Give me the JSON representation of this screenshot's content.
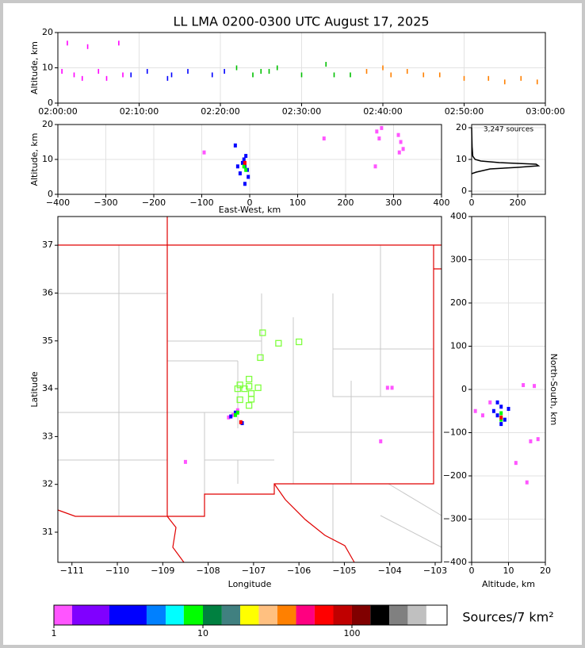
{
  "chart_data": [
    {
      "type": "scatter",
      "title": "LL LMA 0200-0300 UTC August 17, 2025",
      "ylabel": "Altitude, km",
      "xlim": [
        "02:00:00",
        "03:00:00"
      ],
      "xticks": [
        "02:00:00",
        "02:10:00",
        "02:20:00",
        "02:30:00",
        "02:40:00",
        "02:50:00",
        "03:00:00"
      ],
      "ylim": [
        0,
        20
      ],
      "yticks": [
        0,
        10,
        20
      ],
      "grid": true,
      "marker": "dash",
      "series": [
        {
          "color": "#ff00ff",
          "x": [
            "02:00:30",
            "02:01:10",
            "02:02:00",
            "02:03:00",
            "02:03:40",
            "02:05:00",
            "02:06:00",
            "02:07:30",
            "02:08:00"
          ],
          "values": [
            9,
            17,
            8,
            7,
            16,
            9,
            7,
            17,
            8
          ]
        },
        {
          "color": "#0000ff",
          "x": [
            "02:09:00",
            "02:11:00",
            "02:13:30",
            "02:14:00",
            "02:16:00",
            "02:19:00",
            "02:20:30"
          ],
          "values": [
            8,
            9,
            7,
            8,
            9,
            8,
            9
          ]
        },
        {
          "color": "#00c000",
          "x": [
            "02:22:00",
            "02:24:00",
            "02:25:00",
            "02:26:00",
            "02:27:00",
            "02:30:00",
            "02:33:00",
            "02:34:00",
            "02:36:00"
          ],
          "values": [
            10,
            8,
            9,
            9,
            10,
            8,
            11,
            8,
            8
          ]
        },
        {
          "color": "#ff8000",
          "x": [
            "02:38:00",
            "02:40:00",
            "02:41:00",
            "02:43:00",
            "02:45:00",
            "02:47:00",
            "02:50:00",
            "02:53:00",
            "02:55:00",
            "02:57:00",
            "02:59:00"
          ],
          "values": [
            9,
            10,
            8,
            9,
            8,
            8,
            7,
            7,
            6,
            7,
            6
          ]
        }
      ]
    },
    {
      "type": "scatter",
      "xlabel": "East-West, km",
      "ylabel": "Altitude, km",
      "xlim": [
        -400,
        400
      ],
      "xticks": [
        {
          "value": -400,
          "label": "−400"
        },
        {
          "value": -300,
          "label": "−300"
        },
        {
          "value": -200,
          "label": "−200"
        },
        {
          "value": -100,
          "label": "−100"
        },
        0,
        100,
        200,
        300,
        400
      ],
      "ylim": [
        0,
        20
      ],
      "yticks": [
        0,
        10,
        20
      ],
      "grid": true,
      "marker": "dot",
      "series": [
        {
          "color": "#0000ff",
          "x": [
            -10,
            -15,
            -5,
            -20,
            -12,
            -8,
            -25,
            -3,
            -10,
            -30
          ],
          "values": [
            8,
            9,
            7,
            6,
            10,
            11,
            8,
            5,
            3,
            14
          ]
        },
        {
          "color": "#ff55ff",
          "x": [
            265,
            270,
            275,
            262,
            310,
            315,
            320,
            312,
            -95,
            155
          ],
          "values": [
            18,
            16,
            19,
            8,
            17,
            15,
            13,
            12,
            12,
            16
          ]
        },
        {
          "color": "#00ff00",
          "x": [
            -12,
            -8
          ],
          "values": [
            8,
            7
          ]
        },
        {
          "color": "#ff0000",
          "x": [
            -10
          ],
          "values": [
            9
          ]
        }
      ]
    },
    {
      "type": "line",
      "annotation": "3,247 sources",
      "xlim": [
        0,
        320
      ],
      "xticks": [
        0,
        200
      ],
      "ylim": [
        -1,
        21
      ],
      "yticks": [
        0,
        10,
        20
      ],
      "grid": true,
      "color": "#000000",
      "x": [
        0,
        20,
        80,
        200,
        290,
        280,
        120,
        40,
        15,
        5,
        2,
        1,
        0
      ],
      "values": [
        5.5,
        6,
        7,
        7.5,
        8,
        8.5,
        9,
        9.5,
        10,
        11,
        14,
        17,
        20
      ]
    },
    {
      "type": "scatter",
      "xlabel": "Longitude",
      "ylabel": "Latitude",
      "xlim": [
        -111.31,
        -102.86
      ],
      "xticks": [
        {
          "value": -111,
          "label": "−111"
        },
        {
          "value": -110,
          "label": "−110"
        },
        {
          "value": -109,
          "label": "−109"
        },
        {
          "value": -108,
          "label": "−108"
        },
        {
          "value": -107,
          "label": "−107"
        },
        {
          "value": -106,
          "label": "−106"
        },
        {
          "value": -105,
          "label": "−105"
        },
        {
          "value": -104,
          "label": "−104"
        },
        {
          "value": -103,
          "label": "−103"
        }
      ],
      "ylim": [
        30.37,
        37.6
      ],
      "yticks": [
        31,
        32,
        33,
        34,
        35,
        36,
        37
      ],
      "grid": false,
      "marker": "dot",
      "series": [
        {
          "color": "#80ff40",
          "marker": "square",
          "x": [
            -106.8,
            -106.45,
            -106.0,
            -106.85,
            -107.1,
            -107.3,
            -107.1,
            -106.9,
            -107.2,
            -107.35,
            -107.05,
            -107.05,
            -107.1,
            -107.3
          ],
          "values": [
            35.17,
            34.95,
            34.98,
            34.65,
            34.2,
            34.08,
            34.05,
            34.02,
            34.0,
            34.0,
            33.9,
            33.78,
            33.65,
            33.77
          ]
        },
        {
          "color": "#ff55ff",
          "x": [
            -107.45,
            -107.55,
            -107.35,
            -104.2,
            -103.95,
            -108.5,
            -104.05
          ],
          "values": [
            33.45,
            33.4,
            33.55,
            32.9,
            34.02,
            32.47,
            34.02
          ]
        },
        {
          "color": "#0000ff",
          "x": [
            -107.4,
            -107.5,
            -107.25
          ],
          "values": [
            33.5,
            33.42,
            33.28
          ]
        },
        {
          "color": "#00ff00",
          "x": [
            -107.4,
            -107.35
          ],
          "values": [
            33.45,
            33.5
          ]
        },
        {
          "color": "#ff0000",
          "x": [
            -107.28
          ],
          "values": [
            33.3
          ]
        }
      ]
    },
    {
      "type": "scatter",
      "xlabel": "Altitude, km",
      "ylabel": "North-South, km",
      "ylabel_side": "right",
      "xlim": [
        0,
        20
      ],
      "xticks": [
        0,
        10,
        20
      ],
      "ylim": [
        -400,
        400
      ],
      "yticks": [
        {
          "value": -400,
          "label": "−400"
        },
        {
          "value": -300,
          "label": "−300"
        },
        {
          "value": -200,
          "label": "−200"
        },
        {
          "value": -100,
          "label": "−100"
        },
        0,
        100,
        200,
        300,
        400
      ],
      "grid": true,
      "marker": "dot",
      "series": [
        {
          "color": "#0000ff",
          "x": [
            8,
            7,
            9,
            8,
            6,
            10,
            7
          ],
          "values": [
            -40,
            -60,
            -70,
            -80,
            -50,
            -45,
            -30
          ]
        },
        {
          "color": "#ff55ff",
          "x": [
            3,
            1,
            14,
            17,
            12,
            15,
            18,
            16,
            5
          ],
          "values": [
            -60,
            -50,
            10,
            8,
            -170,
            -215,
            -115,
            -120,
            -30
          ]
        },
        {
          "color": "#00ff00",
          "x": [
            8,
            8
          ],
          "values": [
            -55,
            -70
          ]
        },
        {
          "color": "#ff0000",
          "x": [
            8
          ],
          "values": [
            -65
          ]
        }
      ]
    },
    {
      "type": "colorbar",
      "label": "Sources/7 km²",
      "log": true,
      "xlim": [
        1,
        435
      ],
      "xticks": [
        1,
        10,
        100
      ],
      "bounds": [
        1,
        1.325,
        2.357,
        4.19,
        5.63,
        7.44,
        10,
        13.4,
        17.8,
        23.7,
        31.6,
        42.2,
        56.2,
        75,
        100,
        133,
        178,
        237,
        316,
        435
      ],
      "colors": [
        "#ff55ff",
        "#8000ff",
        "#0000ff",
        "#0080ff",
        "#00ffff",
        "#00ff00",
        "#008040",
        "#408080",
        "#ffff00",
        "#ffc080",
        "#ff8000",
        "#ff0080",
        "#ff0000",
        "#c00000",
        "#800000",
        "#000000",
        "#808080",
        "#c0c0c0",
        "#ffffff"
      ]
    }
  ]
}
